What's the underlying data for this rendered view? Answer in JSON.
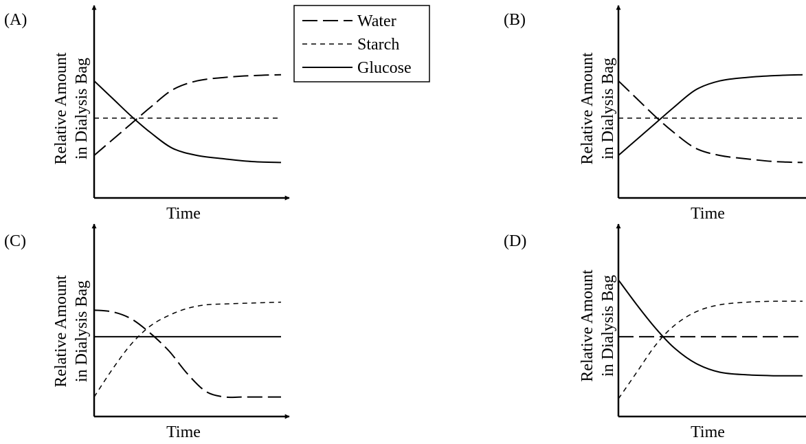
{
  "legend": {
    "position": "top-center",
    "entries": [
      {
        "label": "Water",
        "style": "long-dash"
      },
      {
        "label": "Starch",
        "style": "short-dash"
      },
      {
        "label": "Glucose",
        "style": "solid"
      }
    ]
  },
  "chart_data": [
    {
      "type": "line",
      "panel_label": "(A)",
      "xlabel": "Time",
      "ylabel": "Relative Amount in Dialysis Bag",
      "ylabel_lines": [
        "Relative Amount",
        "in Dialysis Bag"
      ],
      "x_ticks": "none",
      "y_ticks": "none",
      "xlim": [
        0,
        1
      ],
      "ylim": [
        0,
        1
      ],
      "series": [
        {
          "name": "Water",
          "style": "long-dash",
          "x": [
            0,
            0.1,
            0.2,
            0.3,
            0.42,
            0.55,
            0.7,
            0.85,
            1.0
          ],
          "y": [
            0.24,
            0.33,
            0.42,
            0.51,
            0.61,
            0.66,
            0.68,
            0.69,
            0.695
          ]
        },
        {
          "name": "Starch",
          "style": "short-dash",
          "x": [
            0,
            1
          ],
          "y": [
            0.45,
            0.45
          ]
        },
        {
          "name": "Glucose",
          "style": "solid",
          "x": [
            0,
            0.1,
            0.2,
            0.3,
            0.42,
            0.55,
            0.7,
            0.85,
            1.0
          ],
          "y": [
            0.66,
            0.56,
            0.46,
            0.37,
            0.28,
            0.24,
            0.22,
            0.205,
            0.2
          ]
        }
      ]
    },
    {
      "type": "line",
      "panel_label": "(B)",
      "xlabel": "Time",
      "ylabel": "Relative Amount in Dialysis Bag",
      "ylabel_lines": [
        "Relative Amount",
        "in Dialysis Bag"
      ],
      "x_ticks": "none",
      "y_ticks": "none",
      "xlim": [
        0,
        1
      ],
      "ylim": [
        0,
        1
      ],
      "series": [
        {
          "name": "Water",
          "style": "long-dash",
          "x": [
            0,
            0.1,
            0.2,
            0.3,
            0.42,
            0.55,
            0.7,
            0.85,
            1.0
          ],
          "y": [
            0.66,
            0.56,
            0.46,
            0.37,
            0.28,
            0.24,
            0.22,
            0.205,
            0.2
          ]
        },
        {
          "name": "Starch",
          "style": "short-dash",
          "x": [
            0,
            1
          ],
          "y": [
            0.45,
            0.45
          ]
        },
        {
          "name": "Glucose",
          "style": "solid",
          "x": [
            0,
            0.1,
            0.2,
            0.3,
            0.42,
            0.55,
            0.7,
            0.85,
            1.0
          ],
          "y": [
            0.24,
            0.33,
            0.42,
            0.51,
            0.61,
            0.66,
            0.68,
            0.69,
            0.695
          ]
        }
      ]
    },
    {
      "type": "line",
      "panel_label": "(C)",
      "xlabel": "Time",
      "ylabel": "Relative Amount in Dialysis Bag",
      "ylabel_lines": [
        "Relative Amount",
        "in Dialysis Bag"
      ],
      "x_ticks": "none",
      "y_ticks": "none",
      "xlim": [
        0,
        1
      ],
      "ylim": [
        0,
        1
      ],
      "series": [
        {
          "name": "Water",
          "style": "long-dash",
          "x": [
            0,
            0.1,
            0.2,
            0.3,
            0.4,
            0.5,
            0.6,
            0.7,
            0.8,
            1.0
          ],
          "y": [
            0.6,
            0.59,
            0.55,
            0.47,
            0.37,
            0.24,
            0.14,
            0.11,
            0.11,
            0.11
          ]
        },
        {
          "name": "Starch",
          "style": "short-dash",
          "x": [
            0,
            0.1,
            0.2,
            0.3,
            0.4,
            0.5,
            0.6,
            0.7,
            0.85,
            1.0
          ],
          "y": [
            0.11,
            0.27,
            0.41,
            0.51,
            0.57,
            0.61,
            0.63,
            0.635,
            0.64,
            0.645
          ]
        },
        {
          "name": "Glucose",
          "style": "solid",
          "x": [
            0,
            1
          ],
          "y": [
            0.45,
            0.45
          ]
        }
      ]
    },
    {
      "type": "line",
      "panel_label": "(D)",
      "xlabel": "Time",
      "ylabel": "Relative Amount in Dialysis Bag",
      "ylabel_lines": [
        "Relative Amount",
        "in Dialysis Bag"
      ],
      "x_ticks": "none",
      "y_ticks": "none",
      "xlim": [
        0,
        1
      ],
      "ylim": [
        0,
        1
      ],
      "series": [
        {
          "name": "Water",
          "style": "long-dash",
          "x": [
            0,
            1
          ],
          "y": [
            0.45,
            0.45
          ]
        },
        {
          "name": "Starch",
          "style": "short-dash",
          "x": [
            0,
            0.1,
            0.2,
            0.3,
            0.42,
            0.55,
            0.7,
            0.85,
            1.0
          ],
          "y": [
            0.1,
            0.25,
            0.4,
            0.51,
            0.59,
            0.63,
            0.645,
            0.65,
            0.65
          ]
        },
        {
          "name": "Glucose",
          "style": "solid",
          "x": [
            0,
            0.1,
            0.2,
            0.3,
            0.42,
            0.55,
            0.7,
            0.85,
            1.0
          ],
          "y": [
            0.77,
            0.63,
            0.5,
            0.39,
            0.3,
            0.25,
            0.235,
            0.23,
            0.23
          ]
        }
      ]
    }
  ]
}
